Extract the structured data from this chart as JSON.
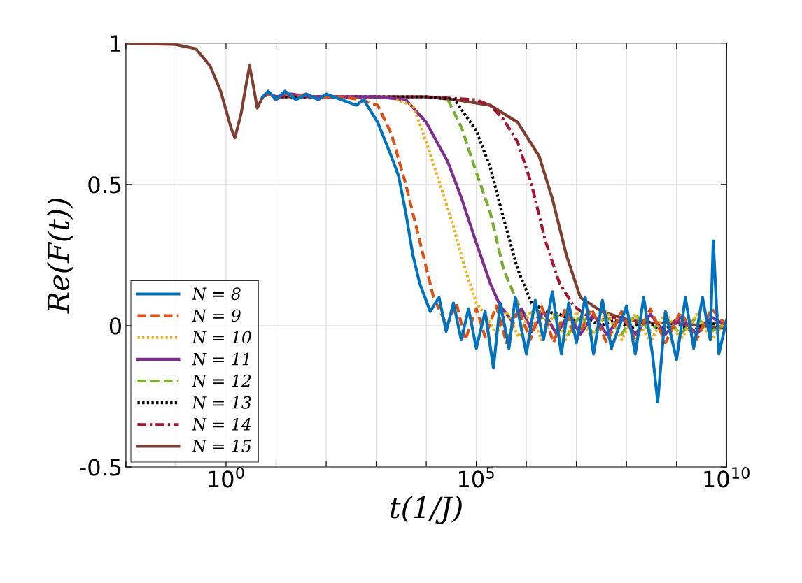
{
  "chart_data": {
    "type": "line",
    "xlabel": "t(1/J)",
    "ylabel": "Re(F(t))",
    "log": "x",
    "grid": true,
    "legend": "bottom left",
    "xlim": [
      0.01,
      10000000000.0
    ],
    "ylim": [
      -0.5,
      1.0
    ],
    "xticks": [
      {
        "value": 0.01,
        "label": null
      },
      {
        "value": 0.1,
        "label": null
      },
      {
        "value": 1,
        "label": "10$^{0}$"
      },
      {
        "value": 10.0,
        "label": null
      },
      {
        "value": 100.0,
        "label": null
      },
      {
        "value": 1000.0,
        "label": null
      },
      {
        "value": 10000.0,
        "label": null
      },
      {
        "value": 100000.0,
        "label": "10$^{5}$"
      },
      {
        "value": 1000000.0,
        "label": null
      },
      {
        "value": 10000000.0,
        "label": null
      },
      {
        "value": 100000000.0,
        "label": null
      },
      {
        "value": 1000000000.0,
        "label": null
      },
      {
        "value": 10000000000.0,
        "label": "10$^{10}$"
      }
    ],
    "yticks": [
      {
        "value": -0.5,
        "label": "-0.5"
      },
      0,
      0.5,
      1
    ],
    "series": [
      {
        "name": "N = 8",
        "color": "#0072bd",
        "line_style": "solid",
        "x": [
          5.4,
          7,
          10.0,
          15.0,
          25.0,
          40.0,
          70.0,
          100.0,
          200.0,
          400.0,
          560.0,
          1070.0,
          2000.0,
          2800.0,
          3900.0,
          5400.0,
          7400.0,
          12000.0,
          18000.0,
          25000.0,
          35000.0,
          50000.0,
          70000.0,
          100000.0,
          150000.0,
          220000.0,
          300000.0,
          450000.0,
          600000.0,
          1000000.0,
          1500000.0,
          2200000.0,
          3300000.0,
          5000000.0,
          7000000.0,
          10000000.0,
          15000000.0,
          22000000.0,
          33000000.0,
          50000000.0,
          100000000.0,
          150000000.0,
          220000000.0,
          330000000.0,
          420000000.0,
          600000000.0,
          1000000000.0,
          1500000000.0,
          2200000000.0,
          3300000000.0,
          4700000000.0,
          5400000000.0,
          7000000000.0,
          10000000000.0
        ],
        "values": [
          0.81,
          0.83,
          0.8,
          0.83,
          0.8,
          0.82,
          0.8,
          0.82,
          0.8,
          0.78,
          0.8,
          0.72,
          0.6,
          0.53,
          0.4,
          0.25,
          0.15,
          0.05,
          0.1,
          -0.02,
          0.08,
          -0.05,
          0.06,
          -0.08,
          0.05,
          -0.15,
          0.08,
          -0.08,
          0.1,
          -0.1,
          0.09,
          -0.05,
          0.12,
          -0.1,
          0.08,
          -0.06,
          0.1,
          -0.1,
          0.09,
          -0.08,
          0.07,
          -0.1,
          0.1,
          -0.1,
          -0.27,
          0.05,
          -0.12,
          0.1,
          -0.08,
          0.1,
          -0.05,
          0.3,
          -0.1,
          0.02
        ]
      },
      {
        "name": "N = 9",
        "color": "#d95319",
        "line_style": "dashed",
        "x": [
          5.4,
          7,
          10.0,
          15.0,
          25.0,
          40.0,
          70.0,
          100.0,
          200.0,
          500.0,
          1070.0,
          2000.0,
          3900.0,
          7400.0,
          14000.0,
          26000.0,
          40000.0,
          60000.0,
          100000.0,
          150000.0,
          250000.0,
          400000.0,
          700000.0,
          1200000.0,
          2000000.0,
          3500000.0,
          6000000.0,
          10000000.0,
          20000000.0,
          40000000.0,
          80000000.0,
          150000000.0,
          300000000.0,
          600000000.0,
          1200000000.0,
          2500000000.0,
          5000000000.0,
          10000000000.0
        ],
        "values": [
          0.81,
          0.82,
          0.8,
          0.82,
          0.81,
          0.82,
          0.8,
          0.81,
          0.81,
          0.8,
          0.78,
          0.68,
          0.5,
          0.3,
          0.1,
          0.0,
          0.08,
          -0.05,
          0.06,
          -0.04,
          0.07,
          -0.06,
          0.06,
          -0.05,
          0.07,
          -0.06,
          0.06,
          -0.05,
          0.06,
          -0.06,
          0.05,
          -0.05,
          0.06,
          -0.06,
          0.05,
          -0.05,
          0.06,
          0.0
        ]
      },
      {
        "name": "N = 10",
        "color": "#edb120",
        "line_style": "dotted",
        "x": [
          2500.0,
          5400.0,
          10000.0,
          19000.0,
          35000.0,
          60000.0,
          100000.0,
          150000.0,
          250000.0,
          400000.0,
          700000.0,
          1200000.0,
          2000000.0,
          3500000.0,
          6000000.0,
          10000000.0,
          20000000.0,
          40000000.0,
          80000000.0,
          150000000.0,
          300000000.0,
          600000000.0,
          1200000000.0,
          2500000000.0,
          5000000000.0,
          10000000000.0
        ],
        "values": [
          0.8,
          0.78,
          0.65,
          0.5,
          0.35,
          0.2,
          0.08,
          0.04,
          -0.03,
          0.05,
          -0.04,
          0.05,
          -0.05,
          0.04,
          -0.05,
          0.05,
          -0.04,
          0.05,
          -0.05,
          0.04,
          -0.06,
          0.05,
          -0.05,
          0.04,
          -0.05,
          0.02
        ]
      },
      {
        "name": "N = 11",
        "color": "#7e2f8e",
        "line_style": "solid",
        "x": [
          5.4,
          7,
          10.0,
          20.0,
          50.0,
          100.0,
          300.0,
          1000.0,
          3900.0,
          10000.0,
          27000.0,
          51000.0,
          97000.0,
          190000.0,
          300000.0,
          500000.0,
          800000.0,
          1300000.0,
          2200000.0,
          4000000.0,
          7000000.0,
          12000000.0,
          22000000.0,
          40000000.0,
          80000000.0,
          150000000.0,
          300000000.0,
          600000000.0,
          1200000000.0,
          2500000000.0,
          5000000000.0,
          10000000000.0
        ],
        "values": [
          0.81,
          0.82,
          0.81,
          0.82,
          0.81,
          0.81,
          0.81,
          0.81,
          0.8,
          0.72,
          0.58,
          0.45,
          0.3,
          0.15,
          0.07,
          0.02,
          0.06,
          -0.02,
          0.05,
          -0.03,
          0.04,
          -0.03,
          0.04,
          -0.03,
          0.03,
          -0.03,
          0.04,
          -0.03,
          0.03,
          -0.03,
          0.03,
          0.0
        ]
      },
      {
        "name": "N = 12",
        "color": "#77ac30",
        "line_style": "dashed",
        "x": [
          27000.0,
          51000.0,
          97000.0,
          190000.0,
          350000.0,
          670000.0,
          1000000.0,
          1600000.0,
          2500000.0,
          4000000.0,
          7000000.0,
          12000000.0,
          22000000.0,
          40000000.0,
          80000000.0,
          150000000.0,
          300000000.0,
          600000000.0,
          1200000000.0,
          2500000000.0,
          5000000000.0,
          10000000000.0
        ],
        "values": [
          0.8,
          0.7,
          0.55,
          0.4,
          0.2,
          0.08,
          0.03,
          0.06,
          0.0,
          0.04,
          -0.03,
          0.04,
          -0.03,
          0.03,
          -0.03,
          0.04,
          -0.02,
          0.03,
          -0.03,
          0.03,
          -0.02,
          0.01
        ]
      },
      {
        "name": "N = 13",
        "color": "#000000",
        "line_style": "dotted",
        "x": [
          5.4,
          7,
          10.0,
          20.0,
          50.0,
          100.0,
          1000.0,
          10000.0,
          37000.0,
          100000.0,
          190000.0,
          350000.0,
          670000.0,
          1270000.0,
          2500000.0,
          4600000.0,
          8000000.0,
          15000000.0,
          30000000.0,
          60000000.0,
          120000000.0,
          250000000.0,
          500000000.0,
          1000000000.0,
          2000000000.0,
          4000000000.0,
          10000000000.0
        ],
        "values": [
          0.81,
          0.82,
          0.81,
          0.81,
          0.81,
          0.81,
          0.81,
          0.81,
          0.8,
          0.69,
          0.56,
          0.38,
          0.2,
          0.08,
          0.05,
          0.04,
          0.02,
          0.03,
          0.0,
          0.02,
          -0.01,
          0.02,
          -0.02,
          0.01,
          -0.02,
          0.01,
          0.0
        ]
      },
      {
        "name": "N = 14",
        "color": "#a2142f",
        "line_style": "dashdot",
        "x": [
          5.4,
          7,
          10.0,
          20.0,
          50.0,
          100.0,
          1000.0,
          10000.0,
          97000.0,
          190000.0,
          350000.0,
          670000.0,
          1270000.0,
          2400000.0,
          4600000.0,
          8800000.0,
          15000000.0,
          30000000.0,
          60000000.0,
          120000000.0,
          250000000.0,
          500000000.0,
          1000000000.0,
          2000000000.0,
          4000000000.0,
          10000000000.0
        ],
        "values": [
          0.81,
          0.82,
          0.81,
          0.81,
          0.81,
          0.81,
          0.81,
          0.81,
          0.8,
          0.78,
          0.73,
          0.65,
          0.5,
          0.3,
          0.15,
          0.07,
          0.04,
          0.02,
          0.03,
          0.0,
          0.02,
          -0.01,
          0.02,
          -0.02,
          0.01,
          0.01
        ]
      },
      {
        "name": "N = 15",
        "color": "#7e3f32",
        "line_style": "solid",
        "x": [
          0.01,
          0.1,
          0.25,
          0.48,
          0.78,
          1.26,
          1.5,
          2.0,
          2.5,
          2.95,
          3.5,
          4.2,
          5.4,
          7,
          10.0,
          20.0,
          50.0,
          100.0,
          1000.0,
          10000.0,
          37000.0,
          190000.0,
          670000.0,
          1800000.0,
          3300000.0,
          6300000.0,
          12000000.0,
          32000000.0,
          110000000.0,
          300000000.0,
          1000000000.0,
          3000000000.0,
          10000000000.0
        ],
        "values": [
          1.0,
          0.995,
          0.98,
          0.92,
          0.83,
          0.7,
          0.665,
          0.75,
          0.85,
          0.92,
          0.85,
          0.77,
          0.81,
          0.82,
          0.81,
          0.81,
          0.81,
          0.81,
          0.81,
          0.81,
          0.8,
          0.78,
          0.72,
          0.6,
          0.45,
          0.25,
          0.1,
          0.05,
          0.02,
          0.01,
          0.01,
          0.0,
          -0.01
        ]
      }
    ]
  }
}
